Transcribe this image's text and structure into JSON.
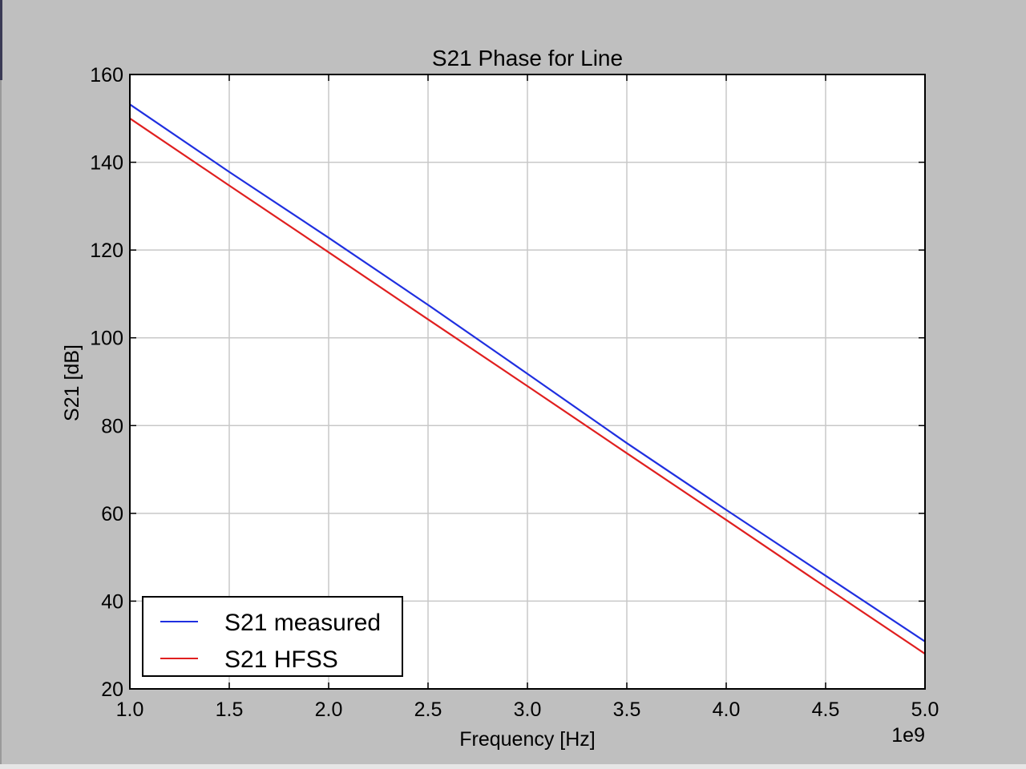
{
  "chart_data": {
    "type": "line",
    "title": "S21 Phase for Line",
    "xlabel": "Frequency [Hz]",
    "ylabel": "S21 [dB]",
    "x_offset_label": "1e9",
    "xlim": [
      1.0,
      5.0
    ],
    "ylim": [
      20,
      160
    ],
    "x_ticks": [
      "1.0",
      "1.5",
      "2.0",
      "2.5",
      "3.0",
      "3.5",
      "4.0",
      "4.5",
      "5.0"
    ],
    "x_tick_values": [
      1.0,
      1.5,
      2.0,
      2.5,
      3.0,
      3.5,
      4.0,
      4.5,
      5.0
    ],
    "y_ticks": [
      "20",
      "40",
      "60",
      "80",
      "100",
      "120",
      "140",
      "160"
    ],
    "y_tick_values": [
      20,
      40,
      60,
      80,
      100,
      120,
      140,
      160
    ],
    "grid": true,
    "legend_position": "lower-left",
    "series": [
      {
        "name": "S21 measured",
        "color": "#1f2fe0",
        "x": [
          1.0,
          1.5,
          2.0,
          2.5,
          3.0,
          3.5,
          4.0,
          4.5,
          5.0
        ],
        "values": [
          153.2,
          137.8,
          122.8,
          107.5,
          91.8,
          76.0,
          60.8,
          45.8,
          30.8
        ]
      },
      {
        "name": "S21 HFSS",
        "color": "#e01f1f",
        "x": [
          1.0,
          1.5,
          2.0,
          2.5,
          3.0,
          3.5,
          4.0,
          4.5,
          5.0
        ],
        "values": [
          150.0,
          134.7,
          119.5,
          104.2,
          89.0,
          73.7,
          58.5,
          43.2,
          28.0
        ]
      }
    ]
  }
}
